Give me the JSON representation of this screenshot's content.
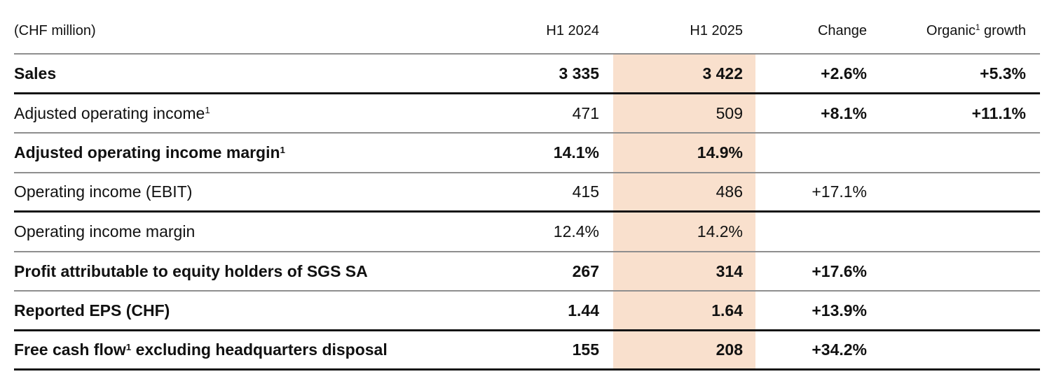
{
  "colors": {
    "highlight_column": "#f9e0cd",
    "rule_gray": "#8e8e8e",
    "rule_black": "#141414",
    "text": "#111111",
    "background": "#ffffff"
  },
  "header": {
    "unit_label": "(CHF million)",
    "col_h1_2024": "H1 2024",
    "col_h1_2025": "H1 2025",
    "col_change": "Change",
    "col_organic_pre": "Organic",
    "col_organic_sup": "1",
    "col_organic_post": " growth"
  },
  "rows": [
    {
      "label": "Sales",
      "label_sup": "",
      "label_post": "",
      "h1_2024": "3 335",
      "h1_2025": "3 422",
      "change": "+2.6%",
      "organic": "+5.3%"
    },
    {
      "label": "Adjusted operating income",
      "label_sup": "1",
      "label_post": "",
      "h1_2024": "471",
      "h1_2025": "509",
      "change": "+8.1%",
      "organic": "+11.1%"
    },
    {
      "label": "Adjusted operating income margin",
      "label_sup": "1",
      "label_post": "",
      "h1_2024": "14.1%",
      "h1_2025": "14.9%",
      "change": "",
      "organic": ""
    },
    {
      "label": "Operating income (EBIT)",
      "label_sup": "",
      "label_post": "",
      "h1_2024": "415",
      "h1_2025": "486",
      "change": "+17.1%",
      "organic": ""
    },
    {
      "label": "Operating income margin",
      "label_sup": "",
      "label_post": "",
      "h1_2024": "12.4%",
      "h1_2025": "14.2%",
      "change": "",
      "organic": ""
    },
    {
      "label": "Profit attributable to equity holders of SGS SA",
      "label_sup": "",
      "label_post": "",
      "h1_2024": "267",
      "h1_2025": "314",
      "change": "+17.6%",
      "organic": ""
    },
    {
      "label": "Reported EPS (CHF)",
      "label_sup": "",
      "label_post": "",
      "h1_2024": "1.44",
      "h1_2025": "1.64",
      "change": "+13.9%",
      "organic": ""
    },
    {
      "label": "Free cash flow",
      "label_sup": "1",
      "label_post": " excluding headquarters disposal",
      "h1_2024": "155",
      "h1_2025": "208",
      "change": "+34.2%",
      "organic": ""
    }
  ]
}
